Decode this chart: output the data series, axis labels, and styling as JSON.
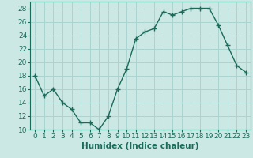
{
  "x": [
    0,
    1,
    2,
    3,
    4,
    5,
    6,
    7,
    8,
    9,
    10,
    11,
    12,
    13,
    14,
    15,
    16,
    17,
    18,
    19,
    20,
    21,
    22,
    23
  ],
  "y": [
    18,
    15,
    16,
    14,
    13,
    11,
    11,
    10,
    12,
    16,
    19,
    23.5,
    24.5,
    25,
    27.5,
    27,
    27.5,
    28,
    28,
    28,
    25.5,
    22.5,
    19.5,
    18.5
  ],
  "xlabel": "Humidex (Indice chaleur)",
  "xlim": [
    -0.5,
    23.5
  ],
  "ylim": [
    10,
    29
  ],
  "yticks": [
    10,
    12,
    14,
    16,
    18,
    20,
    22,
    24,
    26,
    28
  ],
  "xticks": [
    0,
    1,
    2,
    3,
    4,
    5,
    6,
    7,
    8,
    9,
    10,
    11,
    12,
    13,
    14,
    15,
    16,
    17,
    18,
    19,
    20,
    21,
    22,
    23
  ],
  "xtick_labels": [
    "0",
    "1",
    "2",
    "3",
    "4",
    "5",
    "6",
    "7",
    "8",
    "9",
    "10",
    "11",
    "12",
    "13",
    "14",
    "15",
    "16",
    "17",
    "18",
    "19",
    "20",
    "21",
    "22",
    "23"
  ],
  "line_color": "#1a6b5a",
  "marker": "+",
  "bg_color": "#cce8e5",
  "grid_color": "#aad4d0",
  "xlabel_fontsize": 7.5,
  "tick_fontsize": 6.5,
  "linewidth": 1.0,
  "markersize": 4,
  "markerwidth": 1.0
}
